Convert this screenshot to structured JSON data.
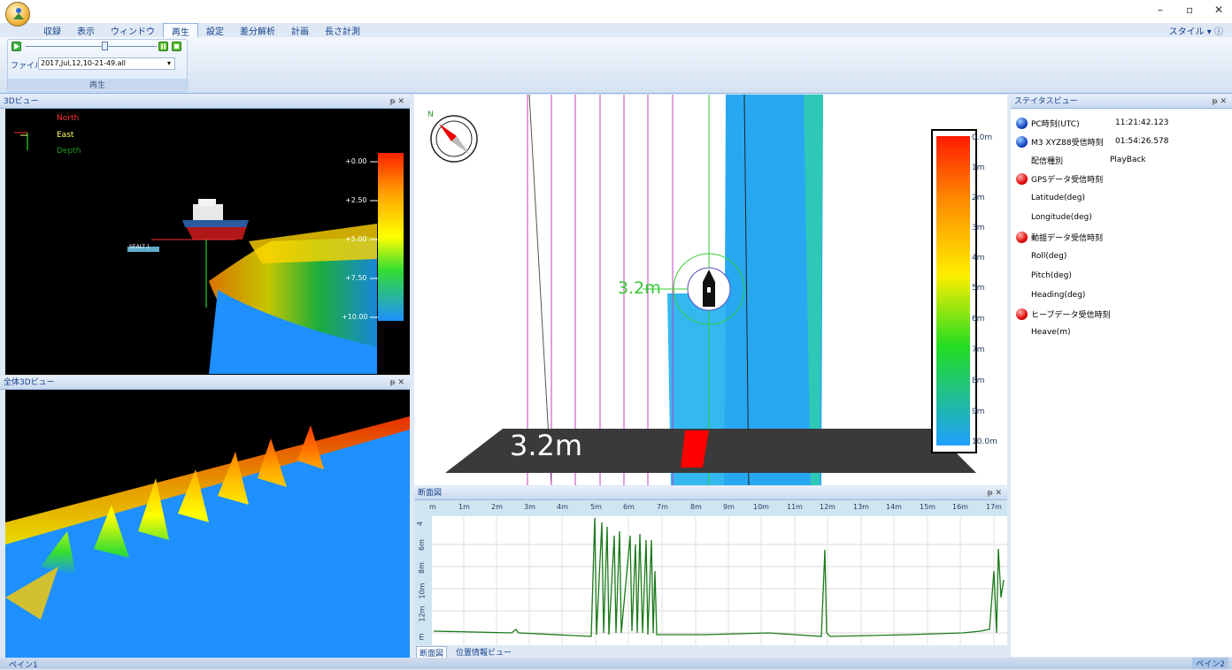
{
  "window": {
    "minimize": "–",
    "restore": "▫",
    "close": "✕"
  },
  "ribbon": {
    "tabs": [
      "収録",
      "表示",
      "ウィンドウ",
      "再生",
      "設定",
      "差分解析",
      "計画",
      "長さ計測"
    ],
    "active_tab": "再生",
    "style_menu": "スタイル ▾ ⓘ",
    "group_label": "再生",
    "file_label": "ファイル",
    "file_value": "2017,Jul,12,10-21-49.all",
    "dropdown_arrow": "▾",
    "slider_position": 0.72
  },
  "panes": {
    "view3d_title": "3Dビュー",
    "viewall_title": "全体3Dビュー",
    "section_title": "断面図",
    "status_title": "ステイタスビュー",
    "pin_close": "ᵽ ✕"
  },
  "view3d": {
    "legend": [
      "North",
      "East",
      "Depth"
    ],
    "scale_labels": [
      "+0.00",
      "+2.50",
      "+5.00",
      "+7.50",
      "+10.00"
    ],
    "vessel_label": "SEALT 1"
  },
  "map": {
    "compass_letter": "N",
    "depth_marker": "3.2m",
    "bottom_depth": "3.2m",
    "scale_labels": [
      "0.0m",
      "1m",
      "2m",
      "3m",
      "4m",
      "5m",
      "6m",
      "7m",
      "8m",
      "9m",
      "10.0m"
    ]
  },
  "section": {
    "x_ticks": [
      "m",
      "1m",
      "2m",
      "3m",
      "4m",
      "5m",
      "6m",
      "7m",
      "8m",
      "9m",
      "10m",
      "11m",
      "12m",
      "13m",
      "14m",
      "15m",
      "16m",
      "17m"
    ],
    "y_ticks": [
      "4",
      "6m",
      "8m",
      "10m",
      "12m",
      "m"
    ]
  },
  "bottom_tabs": [
    "断面図",
    "位置情報ビュー"
  ],
  "status": {
    "rows": [
      {
        "dot": "blue",
        "label": "PC時刻(UTC)",
        "value": "11:21:42.123"
      },
      {
        "dot": "blue",
        "label": "M3 XYZ88受信時刻",
        "value": "01:54:26.578"
      },
      {
        "dot": "none",
        "label": "配信種別",
        "value": "PlayBack"
      },
      {
        "dot": "red",
        "label": "GPSデータ受信時刻",
        "value": ""
      },
      {
        "dot": "none",
        "label": "Latitude(deg)",
        "value": ""
      },
      {
        "dot": "none",
        "label": "Longitude(deg)",
        "value": ""
      },
      {
        "dot": "red",
        "label": "動揺データ受信時刻",
        "value": ""
      },
      {
        "dot": "none",
        "label": "Roll(deg)",
        "value": ""
      },
      {
        "dot": "none",
        "label": "Pitch(deg)",
        "value": ""
      },
      {
        "dot": "none",
        "label": "Heading(deg)",
        "value": ""
      },
      {
        "dot": "red",
        "label": "ヒーブデータ受信時刻",
        "value": ""
      },
      {
        "dot": "none",
        "label": "Heave(m)",
        "value": ""
      }
    ]
  },
  "statusbar": {
    "left": "ペイン1",
    "right": "ペイン2"
  },
  "colors": {
    "accent": "#15428b",
    "ribbon_bg": "#dfe8f5",
    "depth_line": "#1a7a1a",
    "survey_line": "#c040c0"
  }
}
